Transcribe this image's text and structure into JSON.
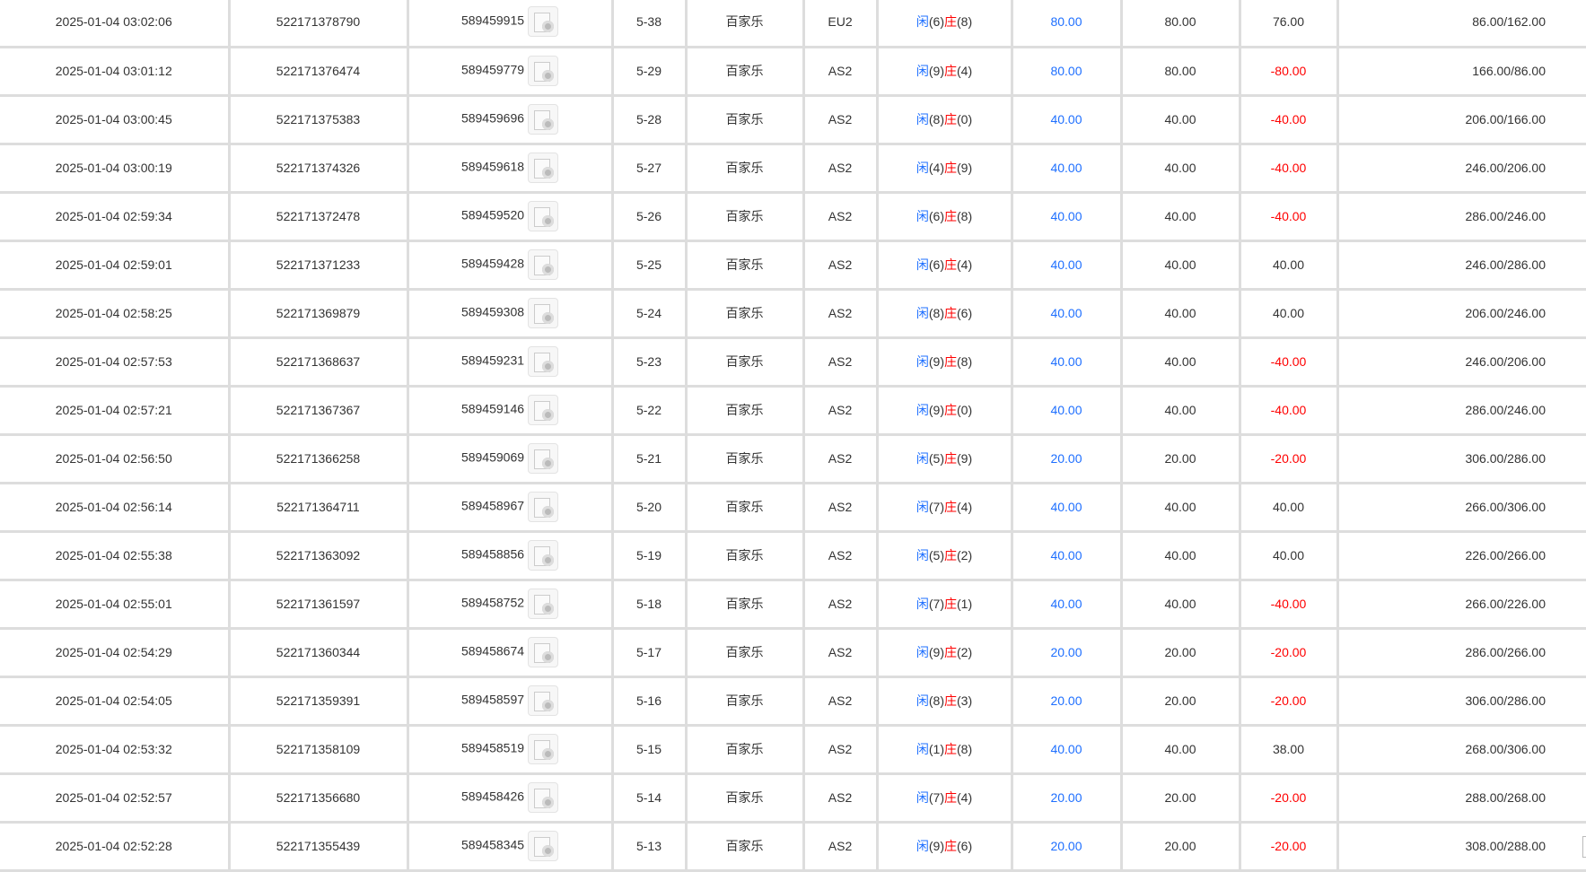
{
  "colors": {
    "player": "#1e6fff",
    "banker": "#ff0000",
    "bet": "#1e6fff",
    "loss": "#ff0000"
  },
  "labels": {
    "player": "闲",
    "banker": "庄"
  },
  "rows": [
    [
      "2025-01-04 03:02:06",
      "522171378790",
      "589459915",
      "5-38",
      "百家乐",
      "EU2",
      "6",
      "8",
      "80.00",
      "80.00",
      "76.00",
      "86.00/162.00"
    ],
    [
      "2025-01-04 03:01:12",
      "522171376474",
      "589459779",
      "5-29",
      "百家乐",
      "AS2",
      "9",
      "4",
      "80.00",
      "80.00",
      "-80.00",
      "166.00/86.00"
    ],
    [
      "2025-01-04 03:00:45",
      "522171375383",
      "589459696",
      "5-28",
      "百家乐",
      "AS2",
      "8",
      "0",
      "40.00",
      "40.00",
      "-40.00",
      "206.00/166.00"
    ],
    [
      "2025-01-04 03:00:19",
      "522171374326",
      "589459618",
      "5-27",
      "百家乐",
      "AS2",
      "4",
      "9",
      "40.00",
      "40.00",
      "-40.00",
      "246.00/206.00"
    ],
    [
      "2025-01-04 02:59:34",
      "522171372478",
      "589459520",
      "5-26",
      "百家乐",
      "AS2",
      "6",
      "8",
      "40.00",
      "40.00",
      "-40.00",
      "286.00/246.00"
    ],
    [
      "2025-01-04 02:59:01",
      "522171371233",
      "589459428",
      "5-25",
      "百家乐",
      "AS2",
      "6",
      "4",
      "40.00",
      "40.00",
      "40.00",
      "246.00/286.00"
    ],
    [
      "2025-01-04 02:58:25",
      "522171369879",
      "589459308",
      "5-24",
      "百家乐",
      "AS2",
      "8",
      "6",
      "40.00",
      "40.00",
      "40.00",
      "206.00/246.00"
    ],
    [
      "2025-01-04 02:57:53",
      "522171368637",
      "589459231",
      "5-23",
      "百家乐",
      "AS2",
      "9",
      "8",
      "40.00",
      "40.00",
      "-40.00",
      "246.00/206.00"
    ],
    [
      "2025-01-04 02:57:21",
      "522171367367",
      "589459146",
      "5-22",
      "百家乐",
      "AS2",
      "9",
      "0",
      "40.00",
      "40.00",
      "-40.00",
      "286.00/246.00"
    ],
    [
      "2025-01-04 02:56:50",
      "522171366258",
      "589459069",
      "5-21",
      "百家乐",
      "AS2",
      "5",
      "9",
      "20.00",
      "20.00",
      "-20.00",
      "306.00/286.00"
    ],
    [
      "2025-01-04 02:56:14",
      "522171364711",
      "589458967",
      "5-20",
      "百家乐",
      "AS2",
      "7",
      "4",
      "40.00",
      "40.00",
      "40.00",
      "266.00/306.00"
    ],
    [
      "2025-01-04 02:55:38",
      "522171363092",
      "589458856",
      "5-19",
      "百家乐",
      "AS2",
      "5",
      "2",
      "40.00",
      "40.00",
      "40.00",
      "226.00/266.00"
    ],
    [
      "2025-01-04 02:55:01",
      "522171361597",
      "589458752",
      "5-18",
      "百家乐",
      "AS2",
      "7",
      "1",
      "40.00",
      "40.00",
      "-40.00",
      "266.00/226.00"
    ],
    [
      "2025-01-04 02:54:29",
      "522171360344",
      "589458674",
      "5-17",
      "百家乐",
      "AS2",
      "9",
      "2",
      "20.00",
      "20.00",
      "-20.00",
      "286.00/266.00"
    ],
    [
      "2025-01-04 02:54:05",
      "522171359391",
      "589458597",
      "5-16",
      "百家乐",
      "AS2",
      "8",
      "3",
      "20.00",
      "20.00",
      "-20.00",
      "306.00/286.00"
    ],
    [
      "2025-01-04 02:53:32",
      "522171358109",
      "589458519",
      "5-15",
      "百家乐",
      "AS2",
      "1",
      "8",
      "40.00",
      "40.00",
      "38.00",
      "268.00/306.00"
    ],
    [
      "2025-01-04 02:52:57",
      "522171356680",
      "589458426",
      "5-14",
      "百家乐",
      "AS2",
      "7",
      "4",
      "20.00",
      "20.00",
      "-20.00",
      "288.00/268.00"
    ],
    [
      "2025-01-04 02:52:28",
      "522171355439",
      "589458345",
      "5-13",
      "百家乐",
      "AS2",
      "9",
      "6",
      "20.00",
      "20.00",
      "-20.00",
      "308.00/288.00"
    ]
  ]
}
